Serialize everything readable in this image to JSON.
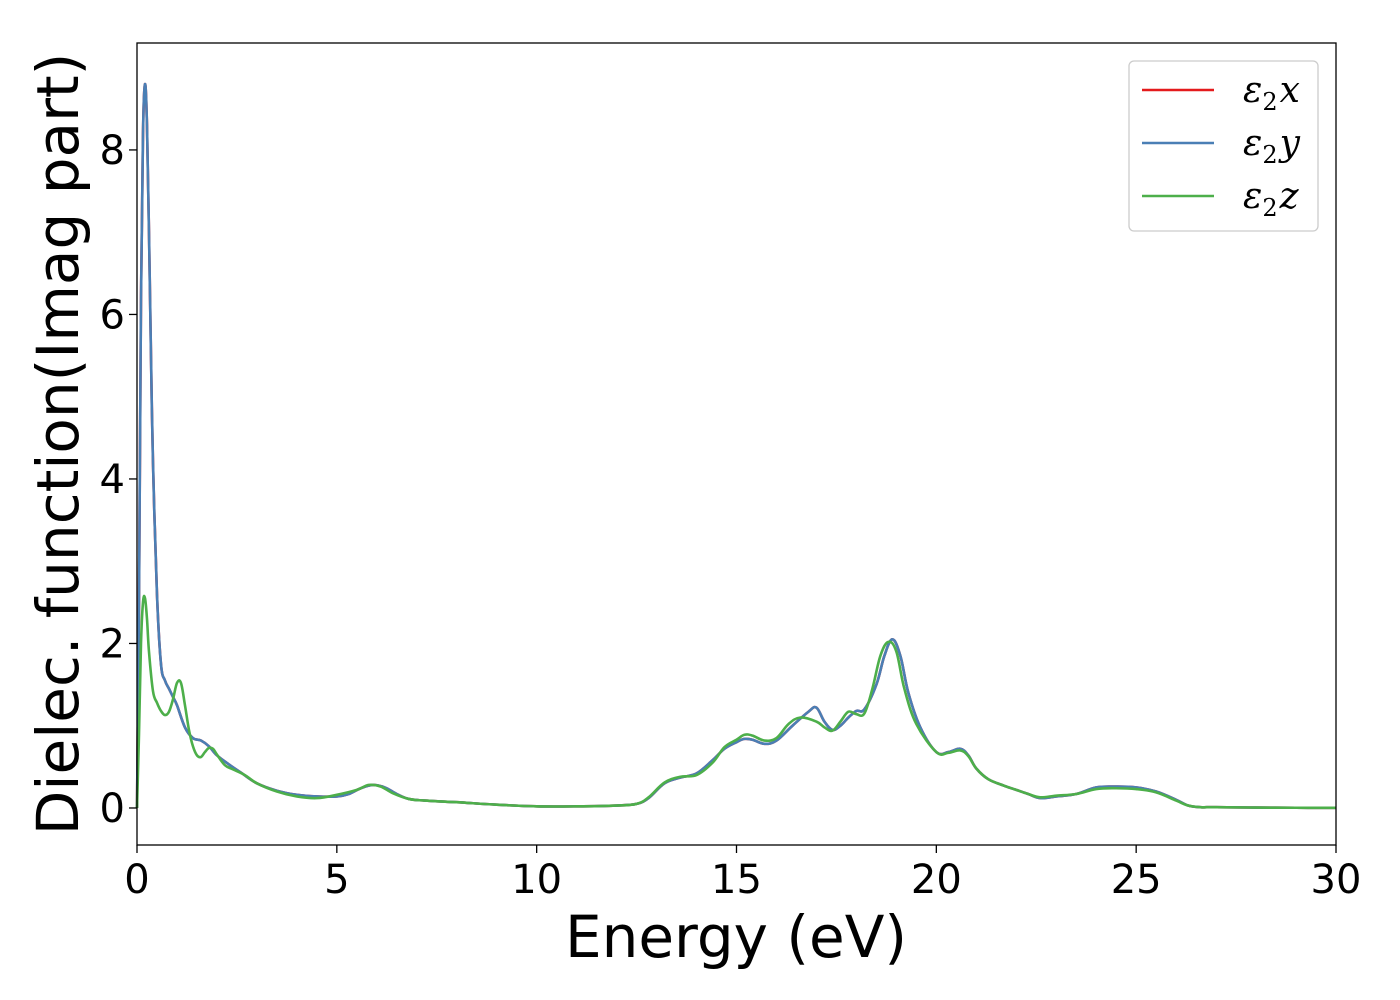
{
  "chart_data": {
    "type": "line",
    "title": "",
    "xlabel": "Energy (eV)",
    "ylabel": "Dielec. function(Imag part)",
    "xlim": [
      0,
      30
    ],
    "ylim": [
      -0.45,
      9.3
    ],
    "xticks": [
      0,
      5,
      10,
      15,
      20,
      25,
      30
    ],
    "yticks": [
      0,
      2,
      4,
      6,
      8
    ],
    "grid": false,
    "legend_position": "top-right",
    "series": [
      {
        "name": "ε2x",
        "legend": {
          "base": "ε",
          "sub": "2",
          "var": "x"
        },
        "color": "#e41a1c",
        "x": [
          0,
          0.05,
          0.1,
          0.15,
          0.2,
          0.25,
          0.3,
          0.35,
          0.4,
          0.5,
          0.6,
          0.7,
          0.8,
          0.9,
          1.0,
          1.2,
          1.4,
          1.6,
          1.8,
          2.0,
          2.3,
          2.6,
          3.0,
          3.5,
          4.0,
          4.5,
          5.0,
          5.3,
          5.6,
          5.9,
          6.2,
          6.5,
          6.8,
          7.2,
          8.0,
          9.0,
          10.0,
          11.0,
          12.0,
          12.5,
          12.8,
          13.2,
          13.6,
          14.0,
          14.4,
          14.7,
          15.0,
          15.2,
          15.4,
          15.7,
          16.0,
          16.4,
          16.8,
          17.0,
          17.2,
          17.4,
          17.6,
          17.8,
          18.0,
          18.2,
          18.5,
          18.7,
          18.9,
          19.1,
          19.3,
          19.6,
          20.0,
          20.3,
          20.6,
          20.8,
          21.0,
          21.3,
          21.7,
          22.0,
          22.3,
          22.6,
          23.0,
          23.5,
          24.0,
          24.5,
          25.0,
          25.5,
          26.0,
          26.3,
          26.6,
          27.0,
          28.0,
          29.0,
          30.0
        ],
        "y": [
          0,
          2.5,
          6.2,
          8.2,
          8.8,
          8.3,
          7.0,
          5.5,
          4.2,
          2.6,
          1.75,
          1.55,
          1.45,
          1.35,
          1.25,
          0.98,
          0.85,
          0.82,
          0.75,
          0.64,
          0.53,
          0.43,
          0.3,
          0.21,
          0.16,
          0.14,
          0.14,
          0.17,
          0.24,
          0.28,
          0.25,
          0.17,
          0.11,
          0.09,
          0.07,
          0.04,
          0.02,
          0.02,
          0.03,
          0.05,
          0.12,
          0.3,
          0.37,
          0.42,
          0.58,
          0.72,
          0.8,
          0.84,
          0.83,
          0.78,
          0.82,
          1.0,
          1.17,
          1.22,
          1.05,
          0.95,
          1.0,
          1.1,
          1.18,
          1.2,
          1.5,
          1.85,
          2.05,
          1.85,
          1.4,
          0.98,
          0.68,
          0.68,
          0.72,
          0.64,
          0.48,
          0.35,
          0.27,
          0.22,
          0.17,
          0.12,
          0.14,
          0.17,
          0.25,
          0.26,
          0.25,
          0.2,
          0.1,
          0.03,
          0.01,
          0.01,
          0.005,
          0.003,
          0.002
        ]
      },
      {
        "name": "ε2y",
        "legend": {
          "base": "ε",
          "sub": "2",
          "var": "y"
        },
        "color": "#4a7fb5",
        "x": [
          0,
          0.05,
          0.1,
          0.15,
          0.2,
          0.25,
          0.3,
          0.35,
          0.4,
          0.5,
          0.6,
          0.7,
          0.8,
          0.9,
          1.0,
          1.2,
          1.4,
          1.6,
          1.8,
          2.0,
          2.3,
          2.6,
          3.0,
          3.5,
          4.0,
          4.5,
          5.0,
          5.3,
          5.6,
          5.9,
          6.2,
          6.5,
          6.8,
          7.2,
          8.0,
          9.0,
          10.0,
          11.0,
          12.0,
          12.5,
          12.8,
          13.2,
          13.6,
          14.0,
          14.4,
          14.7,
          15.0,
          15.2,
          15.4,
          15.7,
          16.0,
          16.4,
          16.8,
          17.0,
          17.2,
          17.4,
          17.6,
          17.8,
          18.0,
          18.2,
          18.5,
          18.7,
          18.9,
          19.1,
          19.3,
          19.6,
          20.0,
          20.3,
          20.6,
          20.8,
          21.0,
          21.3,
          21.7,
          22.0,
          22.3,
          22.6,
          23.0,
          23.5,
          24.0,
          24.5,
          25.0,
          25.5,
          26.0,
          26.3,
          26.6,
          27.0,
          28.0,
          29.0,
          30.0
        ],
        "y": [
          0,
          2.5,
          6.2,
          8.2,
          8.8,
          8.3,
          7.0,
          5.5,
          4.2,
          2.6,
          1.75,
          1.55,
          1.45,
          1.35,
          1.25,
          0.98,
          0.85,
          0.82,
          0.75,
          0.64,
          0.53,
          0.43,
          0.3,
          0.21,
          0.16,
          0.14,
          0.14,
          0.17,
          0.24,
          0.28,
          0.25,
          0.17,
          0.11,
          0.09,
          0.07,
          0.04,
          0.02,
          0.02,
          0.03,
          0.05,
          0.12,
          0.3,
          0.37,
          0.42,
          0.58,
          0.72,
          0.8,
          0.84,
          0.83,
          0.78,
          0.82,
          1.0,
          1.17,
          1.22,
          1.05,
          0.95,
          1.0,
          1.1,
          1.18,
          1.2,
          1.5,
          1.85,
          2.05,
          1.85,
          1.4,
          0.98,
          0.68,
          0.68,
          0.72,
          0.64,
          0.48,
          0.35,
          0.27,
          0.22,
          0.17,
          0.12,
          0.14,
          0.17,
          0.25,
          0.26,
          0.25,
          0.2,
          0.1,
          0.03,
          0.01,
          0.01,
          0.005,
          0.003,
          0.002
        ]
      },
      {
        "name": "ε2z",
        "legend": {
          "base": "ε",
          "sub": "2",
          "var": "z"
        },
        "color": "#4daf4a",
        "x": [
          0,
          0.05,
          0.1,
          0.15,
          0.2,
          0.25,
          0.3,
          0.4,
          0.5,
          0.6,
          0.7,
          0.8,
          0.9,
          1.0,
          1.1,
          1.2,
          1.3,
          1.4,
          1.5,
          1.6,
          1.7,
          1.8,
          1.9,
          2.0,
          2.2,
          2.4,
          2.7,
          3.0,
          3.5,
          4.0,
          4.5,
          5.0,
          5.5,
          5.8,
          6.1,
          6.4,
          6.8,
          7.2,
          8.0,
          9.0,
          10.0,
          11.0,
          12.0,
          12.5,
          12.8,
          13.2,
          13.6,
          14.0,
          14.4,
          14.7,
          15.0,
          15.2,
          15.4,
          15.7,
          16.0,
          16.3,
          16.6,
          17.0,
          17.2,
          17.4,
          17.6,
          17.8,
          18.0,
          18.2,
          18.4,
          18.6,
          18.8,
          19.0,
          19.2,
          19.5,
          20.0,
          20.3,
          20.6,
          20.8,
          21.0,
          21.3,
          21.7,
          22.0,
          22.3,
          22.6,
          23.0,
          23.5,
          24.0,
          24.5,
          25.0,
          25.5,
          26.0,
          26.3,
          26.6,
          27.0,
          28.0,
          29.0,
          30.0
        ],
        "y": [
          0,
          0.9,
          2.0,
          2.5,
          2.55,
          2.3,
          1.9,
          1.42,
          1.28,
          1.18,
          1.13,
          1.17,
          1.32,
          1.52,
          1.52,
          1.25,
          0.95,
          0.75,
          0.64,
          0.62,
          0.68,
          0.73,
          0.72,
          0.65,
          0.52,
          0.47,
          0.4,
          0.3,
          0.2,
          0.14,
          0.12,
          0.16,
          0.22,
          0.28,
          0.26,
          0.18,
          0.11,
          0.09,
          0.07,
          0.04,
          0.02,
          0.02,
          0.03,
          0.05,
          0.13,
          0.31,
          0.38,
          0.4,
          0.55,
          0.74,
          0.83,
          0.89,
          0.88,
          0.82,
          0.85,
          1.02,
          1.1,
          1.05,
          0.98,
          0.94,
          1.05,
          1.17,
          1.14,
          1.15,
          1.45,
          1.85,
          2.02,
          1.9,
          1.45,
          1.02,
          0.68,
          0.67,
          0.7,
          0.63,
          0.48,
          0.35,
          0.27,
          0.22,
          0.17,
          0.13,
          0.15,
          0.17,
          0.23,
          0.24,
          0.23,
          0.19,
          0.09,
          0.03,
          0.01,
          0.01,
          0.005,
          0.003,
          0.002
        ]
      }
    ]
  }
}
